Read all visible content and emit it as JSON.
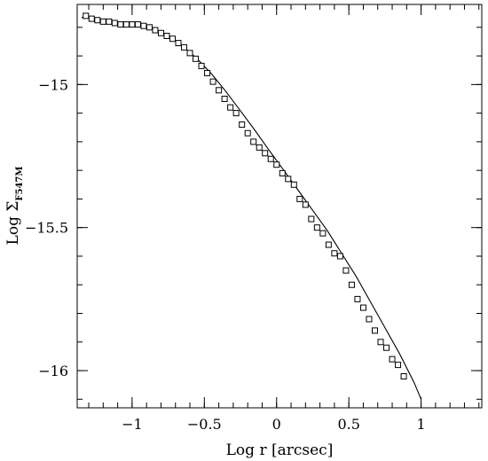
{
  "chart_data": {
    "type": "scatter",
    "title": "",
    "xlabel": "Log r [arcsec]",
    "ylabel": {
      "prefix": "Log Σ",
      "subscript": "F547M"
    },
    "xlim": [
      -1.38,
      1.42
    ],
    "ylim": [
      -16.13,
      -14.72
    ],
    "x_ticks": [
      {
        "value": -1,
        "label": "−1"
      },
      {
        "value": -0.5,
        "label": "−0.5"
      },
      {
        "value": 0,
        "label": "0"
      },
      {
        "value": 0.5,
        "label": "0.5"
      },
      {
        "value": 1,
        "label": "1"
      }
    ],
    "y_ticks": [
      {
        "value": -15,
        "label": "−15"
      },
      {
        "value": -15.5,
        "label": "−15.5"
      },
      {
        "value": -16,
        "label": "−16"
      }
    ],
    "x_minor_step": 0.1,
    "y_minor_step": 0.1,
    "legend": "none",
    "grid": false,
    "series": [
      {
        "marker": "open-square",
        "x": [
          -1.32,
          -1.28,
          -1.24,
          -1.2,
          -1.16,
          -1.12,
          -1.08,
          -1.04,
          -1.0,
          -0.96,
          -0.92,
          -0.88,
          -0.84,
          -0.8,
          -0.76,
          -0.72,
          -0.68,
          -0.64,
          -0.6,
          -0.56,
          -0.52,
          -0.48,
          -0.44,
          -0.4,
          -0.36,
          -0.32,
          -0.28,
          -0.24,
          -0.2,
          -0.16,
          -0.12,
          -0.08,
          -0.04,
          0.0,
          0.04,
          0.08,
          0.12,
          0.16,
          0.2,
          0.24,
          0.28,
          0.32,
          0.36,
          0.4,
          0.44,
          0.48,
          0.52,
          0.56,
          0.6,
          0.64,
          0.68,
          0.72,
          0.76,
          0.8,
          0.84,
          0.88
        ],
        "y": [
          -14.76,
          -14.77,
          -14.775,
          -14.78,
          -14.78,
          -14.785,
          -14.79,
          -14.79,
          -14.79,
          -14.79,
          -14.795,
          -14.8,
          -14.81,
          -14.82,
          -14.83,
          -14.84,
          -14.855,
          -14.87,
          -14.89,
          -14.91,
          -14.935,
          -14.96,
          -14.99,
          -15.02,
          -15.05,
          -15.08,
          -15.1,
          -15.14,
          -15.17,
          -15.2,
          -15.22,
          -15.24,
          -15.26,
          -15.28,
          -15.31,
          -15.33,
          -15.35,
          -15.4,
          -15.42,
          -15.47,
          -15.5,
          -15.52,
          -15.56,
          -15.59,
          -15.6,
          -15.65,
          -15.7,
          -15.75,
          -15.78,
          -15.82,
          -15.86,
          -15.9,
          -15.92,
          -15.96,
          -15.98,
          -16.02
        ]
      },
      {
        "marker": "line",
        "x": [
          -1.35,
          -1.25,
          -1.15,
          -1.05,
          -0.95,
          -0.85,
          -0.75,
          -0.65,
          -0.55,
          -0.45,
          -0.35,
          -0.25,
          -0.15,
          -0.05,
          0.05,
          0.15,
          0.25,
          0.35,
          0.45,
          0.55,
          0.65,
          0.75,
          0.85,
          0.95,
          1.0
        ],
        "y": [
          -14.765,
          -14.772,
          -14.781,
          -14.79,
          -14.795,
          -14.81,
          -14.832,
          -14.866,
          -14.91,
          -14.963,
          -15.025,
          -15.092,
          -15.16,
          -15.231,
          -15.3,
          -15.37,
          -15.44,
          -15.51,
          -15.59,
          -15.67,
          -15.76,
          -15.85,
          -15.94,
          -16.04,
          -16.1
        ]
      }
    ]
  }
}
